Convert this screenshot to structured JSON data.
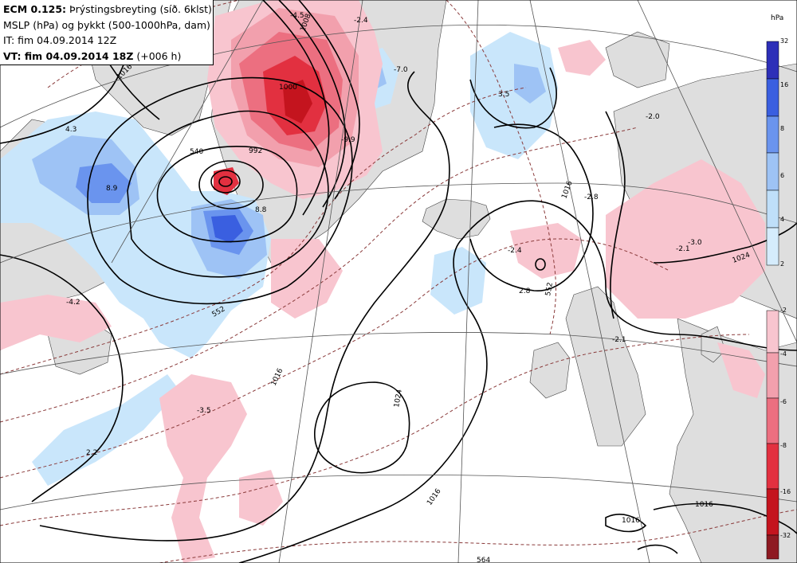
{
  "title": {
    "line1_bold": "ECM 0.125:",
    "line1_rest": " Þrýstingsbreyting (síð. 6klst)",
    "line2": "MSLP (hPa) og þykkt (500-1000hPa, dam)",
    "line3": "IT: fim 04.09.2014 12Z",
    "line4_bold": "VT: fim 04.09.2014 18Z",
    "line4_rest": " (+006 h)"
  },
  "colorbar": {
    "unit": "hPa",
    "positive": [
      {
        "label": "32",
        "color": "#2d2fb8"
      },
      {
        "label": "16",
        "color": "#3a5fe0"
      },
      {
        "label": "8",
        "color": "#6a94ee"
      },
      {
        "label": "6",
        "color": "#9ec3f5"
      },
      {
        "label": "4",
        "color": "#c9e6fb"
      },
      {
        "label": "2",
        "color": "#c9e6fb"
      }
    ],
    "negative": [
      {
        "label": "-2",
        "color": "#f8c5cf"
      },
      {
        "label": "-4",
        "color": "#f2a0ad"
      },
      {
        "label": "-6",
        "color": "#ec6f80"
      },
      {
        "label": "-8",
        "color": "#e23040"
      },
      {
        "label": "-16",
        "color": "#c4141e"
      },
      {
        "label": "-32",
        "color": "#8e1a22"
      }
    ]
  },
  "isobar_labels": [
    "1016",
    "1016",
    "1024",
    "1016",
    "1016",
    "1016",
    "1024",
    "992",
    "1000",
    "1008",
    "1016"
  ],
  "thickness_labels": [
    "540",
    "552",
    "552",
    "564"
  ],
  "change_labels": [
    "-4.5",
    "-2.4",
    "-7.0",
    "-9.9",
    "3.5",
    "-2.0",
    "4.3",
    "8.9",
    "8.8",
    "-2.8",
    "-2.4",
    "2.8",
    "-3.0",
    "-2.1",
    "-2.1",
    "-4.2",
    "-3.5",
    "2.2"
  ]
}
